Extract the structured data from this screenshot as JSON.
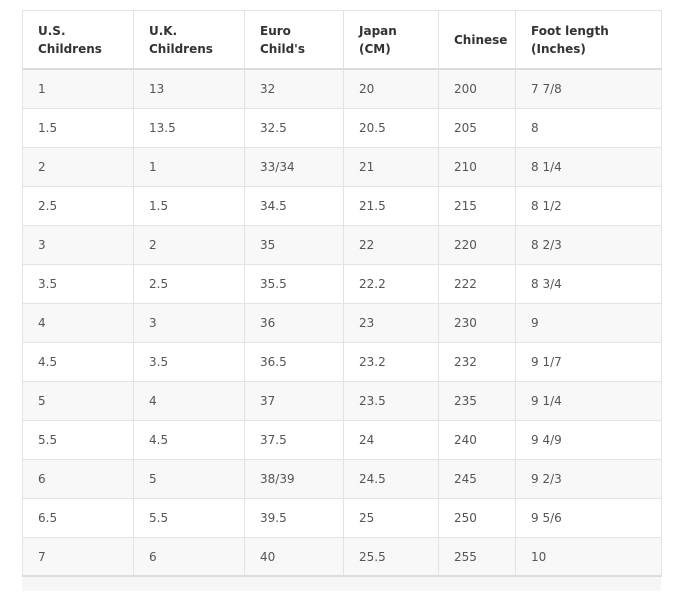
{
  "table": {
    "header": [
      "U.S.\nChildrens",
      "U.K.\nChildrens",
      "Euro\nChild's",
      "Japan\n(CM)",
      "Chinese",
      "Foot length\n(Inches)"
    ],
    "rows": [
      [
        "1",
        "13",
        "32",
        "20",
        "200",
        "7 7/8"
      ],
      [
        "1.5",
        "13.5",
        "32.5",
        "20.5",
        "205",
        "8"
      ],
      [
        "2",
        "1",
        "33/34",
        "21",
        "210",
        "8 1/4"
      ],
      [
        "2.5",
        "1.5",
        "34.5",
        "21.5",
        "215",
        "8 1/2"
      ],
      [
        "3",
        "2",
        "35",
        "22",
        "220",
        "8 2/3"
      ],
      [
        "3.5",
        "2.5",
        "35.5",
        "22.2",
        "222",
        "8 3/4"
      ],
      [
        "4",
        "3",
        "36",
        "23",
        "230",
        "9"
      ],
      [
        "4.5",
        "3.5",
        "36.5",
        "23.2",
        "232",
        "9 1/7"
      ],
      [
        "5",
        "4",
        "37",
        "23.5",
        "235",
        "9 1/4"
      ],
      [
        "5.5",
        "4.5",
        "37.5",
        "24",
        "240",
        "9 4/9"
      ],
      [
        "6",
        "5",
        "38/39",
        "24.5",
        "245",
        "9 2/3"
      ],
      [
        "6.5",
        "5.5",
        "39.5",
        "25",
        "250",
        "9 5/6"
      ],
      [
        "7",
        "6",
        "40",
        "25.5",
        "255",
        "10"
      ]
    ]
  }
}
